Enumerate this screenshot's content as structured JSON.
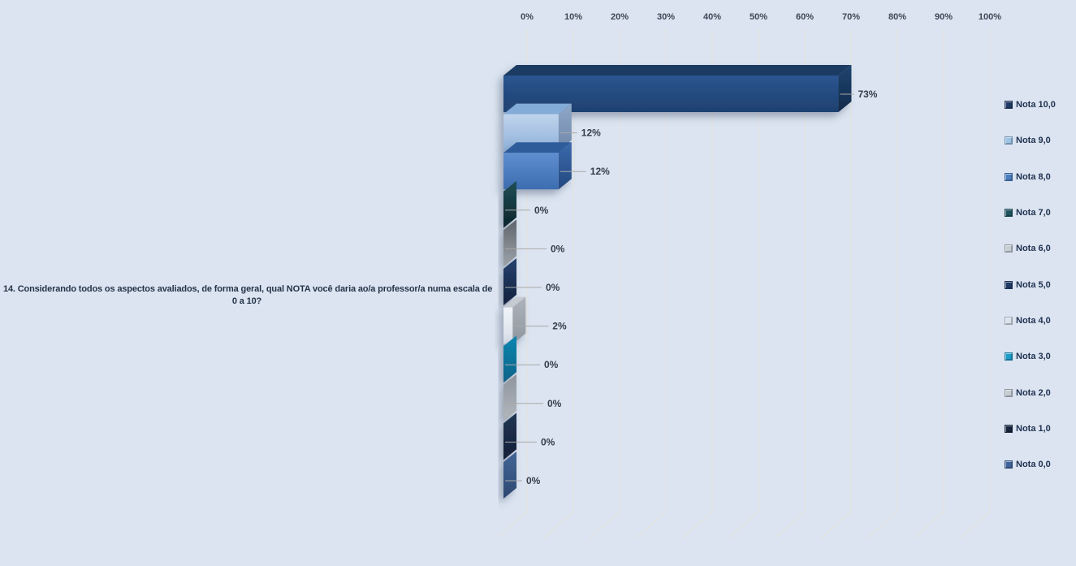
{
  "colors": {
    "background": "#dbe4f0",
    "gridline": "#e7e3db",
    "leader_line": "#a9a9a9",
    "axis_label": "#3d4757",
    "data_label": "#363d49",
    "question_text": "#253349",
    "legend_text": "#1f3150"
  },
  "question": {
    "line1": "14. Considerando todos os aspectos avaliados, de forma geral, qual NOTA você daria ao/a professor/a numa escala de",
    "line2": "0 a 10?"
  },
  "chart_data": {
    "type": "bar",
    "orientation": "horizontal",
    "style": "3d",
    "title": "",
    "xlabel": "",
    "ylabel": "",
    "categories": [
      "Nota 10,0",
      "Nota 9,0",
      "Nota 8,0",
      "Nota 7,0",
      "Nota 6,0",
      "Nota 5,0",
      "Nota 4,0",
      "Nota 3,0",
      "Nota 2,0",
      "Nota 1,0",
      "Nota 0,0"
    ],
    "values": [
      73,
      12,
      12,
      0,
      0,
      0,
      2,
      0,
      0,
      0,
      0
    ],
    "value_labels": [
      "73%",
      "12%",
      "12%",
      "0%",
      "0%",
      "0%",
      "2%",
      "0%",
      "0%",
      "0%",
      "0%"
    ],
    "x_axis": {
      "position": "top",
      "min": 0,
      "max": 100,
      "ticks": [
        "0%",
        "10%",
        "20%",
        "30%",
        "40%",
        "50%",
        "60%",
        "70%",
        "80%",
        "90%",
        "100%"
      ]
    },
    "grid": true,
    "legend_position": "right",
    "series_colors": [
      {
        "name": "Nota 10,0",
        "swatch": "#1f3864",
        "top": "#1b3a63",
        "sideA": "#1e4470",
        "sideB": "#122a4a",
        "frontA": "#2b5590",
        "frontB": "#1e4170"
      },
      {
        "name": "Nota 9,0",
        "swatch": "#9dc3e6",
        "top": "#84acd8",
        "sideA": "#8fa7c8",
        "sideB": "#6f87a8",
        "frontA": "#c0d4ec",
        "frontB": "#8fb1da"
      },
      {
        "name": "Nota 8,0",
        "swatch": "#4a7ec0",
        "top": "#2e5b9b",
        "sideA": "#3a69ac",
        "sideB": "#24497f",
        "frontA": "#5f8ed0",
        "frontB": "#3c6db0"
      },
      {
        "name": "Nota 7,0",
        "swatch": "#1d545e",
        "top": "#0c2227",
        "sideA": "#1f4f57",
        "sideB": "#0d242a",
        "frontA": "#2e6e79",
        "frontB": "#143740"
      },
      {
        "name": "Nota 6,0",
        "swatch": "#c9ced4",
        "top": "#4a5058",
        "sideA": "#5e646b",
        "sideB": "#9ea4aa",
        "frontA": "#a6acb3",
        "frontB": "#70767d"
      },
      {
        "name": "Nota 5,0",
        "swatch": "#203a66",
        "top": "#15243e",
        "sideA": "#26426e",
        "sideB": "#111f3c",
        "frontA": "#28477a",
        "frontB": "#182e55"
      },
      {
        "name": "Nota 4,0",
        "swatch": "#dde3ec",
        "top": "#c6cbd3",
        "sideA": "#adb3ba",
        "sideB": "#8f969e",
        "frontA": "#f0f3f8",
        "frontB": "#d8dfe9"
      },
      {
        "name": "Nota 3,0",
        "swatch": "#1b9cc8",
        "top": "#07506f",
        "sideA": "#1186b0",
        "sideB": "#0a6287",
        "frontA": "#1290bc",
        "frontB": "#0a6e96"
      },
      {
        "name": "Nota 2,0",
        "swatch": "#c7ccd2",
        "top": "#7c828a",
        "sideA": "#8f959d",
        "sideB": "#b2b8be",
        "frontA": "#c3c8ce",
        "frontB": "#a2a8b0"
      },
      {
        "name": "Nota 1,0",
        "swatch": "#15233c",
        "top": "#0f1b30",
        "sideA": "#223653",
        "sideB": "#101e36",
        "frontA": "#24385a",
        "frontB": "#131f3a"
      },
      {
        "name": "Nota 0,0",
        "swatch": "#3f639a",
        "top": "#2a4268",
        "sideA": "#436697",
        "sideB": "#2c4870",
        "frontA": "#48699c",
        "frontB": "#31507e"
      }
    ]
  }
}
